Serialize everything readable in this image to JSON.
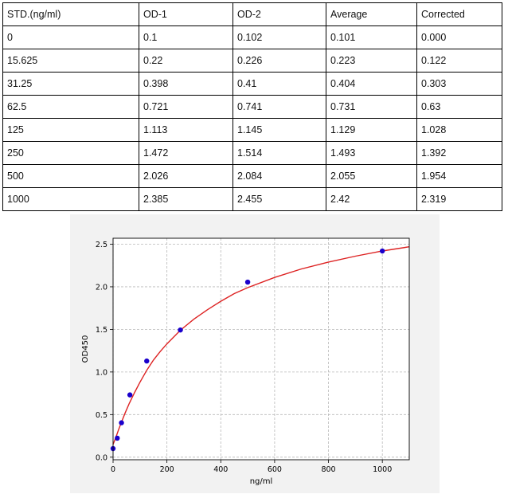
{
  "table": {
    "headers": [
      "STD.(ng/ml)",
      "OD-1",
      "OD-2",
      "Average",
      "Corrected"
    ],
    "rows": [
      [
        "0",
        "0.1",
        "0.102",
        "0.101",
        "0.000"
      ],
      [
        "15.625",
        "0.22",
        "0.226",
        "0.223",
        "0.122"
      ],
      [
        "31.25",
        "0.398",
        "0.41",
        "0.404",
        "0.303"
      ],
      [
        "62.5",
        "0.721",
        "0.741",
        "0.731",
        "0.63"
      ],
      [
        "125",
        "1.113",
        "1.145",
        "1.129",
        "1.028"
      ],
      [
        "250",
        "1.472",
        "1.514",
        "1.493",
        "1.392"
      ],
      [
        "500",
        "2.026",
        "2.084",
        "2.055",
        "1.954"
      ],
      [
        "1000",
        "2.385",
        "2.455",
        "2.42",
        "2.319"
      ]
    ]
  },
  "chart_data": {
    "type": "scatter",
    "title": "",
    "xlabel": "ng/ml",
    "ylabel": "OD450",
    "xlim": [
      0,
      1100
    ],
    "ylim": [
      -0.03,
      2.57
    ],
    "xticks": [
      0,
      200,
      400,
      600,
      800,
      1000
    ],
    "yticks": [
      0.0,
      0.5,
      1.0,
      1.5,
      2.0,
      2.5
    ],
    "ytick_labels": [
      "0.0",
      "0.5",
      "1.0",
      "1.5",
      "2.0",
      "2.5"
    ],
    "grid": true,
    "points": {
      "x": [
        0,
        15.625,
        31.25,
        62.5,
        125,
        250,
        500,
        1000
      ],
      "y": [
        0.101,
        0.223,
        0.404,
        0.731,
        1.129,
        1.493,
        2.055,
        2.42
      ],
      "color": "#1a00cc"
    },
    "fit_curve": {
      "color": "#dd2222",
      "x": [
        0,
        5,
        10,
        20,
        30,
        45,
        60,
        80,
        100,
        125,
        150,
        175,
        200,
        250,
        300,
        350,
        400,
        450,
        500,
        600,
        700,
        800,
        900,
        1000,
        1100
      ],
      "y": [
        0.15,
        0.19,
        0.23,
        0.32,
        0.4,
        0.52,
        0.63,
        0.76,
        0.88,
        1.02,
        1.14,
        1.24,
        1.33,
        1.49,
        1.62,
        1.73,
        1.83,
        1.92,
        1.99,
        2.11,
        2.21,
        2.29,
        2.36,
        2.42,
        2.47
      ]
    },
    "background_color": "#f2f2f2"
  }
}
